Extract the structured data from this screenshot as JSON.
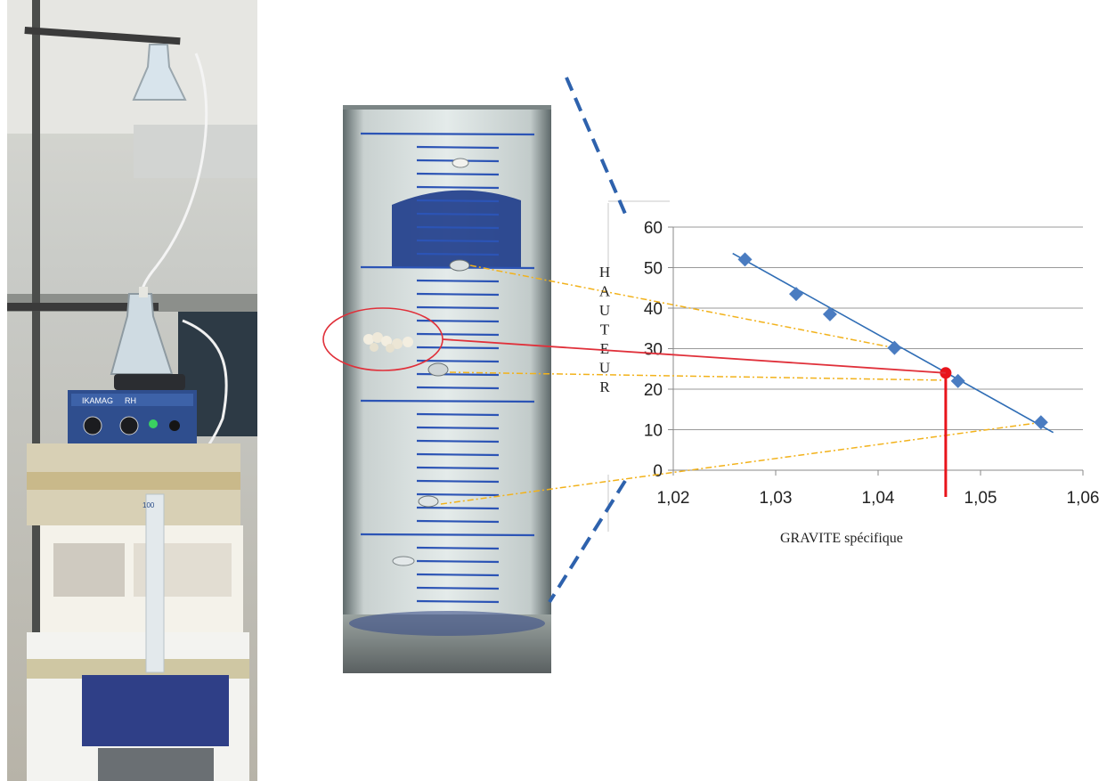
{
  "photo_apparatus": {
    "device_brand": "IKAMAG",
    "device_model": "RH",
    "cylinder_label": "100"
  },
  "chart_data": {
    "type": "scatter",
    "xlabel": "GRAVITE  spécifique",
    "ylabel": "HAUTEUR",
    "xlim": [
      1.02,
      1.06
    ],
    "ylim": [
      0,
      60
    ],
    "x_ticks": [
      "1,02",
      "1,03",
      "1,04",
      "1,05",
      "1,06"
    ],
    "y_ticks": [
      "0",
      "10",
      "20",
      "30",
      "40",
      "50",
      "60"
    ],
    "grid": "horizontal",
    "series": [
      {
        "marker": "diamond",
        "color": "#4a7cc1",
        "points": [
          {
            "x": 1.027,
            "y": 52
          },
          {
            "x": 1.032,
            "y": 43.5
          },
          {
            "x": 1.0353,
            "y": 38.5
          },
          {
            "x": 1.0416,
            "y": 30.2
          },
          {
            "x": 1.0478,
            "y": 22
          },
          {
            "x": 1.0559,
            "y": 11.8
          }
        ]
      }
    ],
    "trendline": {
      "color": "#2f6db5",
      "x_start": 1.0258,
      "y_start": 53.5,
      "x_end": 1.0571,
      "y_end": 9.3
    },
    "marked_point": {
      "x": 1.0466,
      "y": 24,
      "color": "#e8141b"
    },
    "marker_vertical_line": {
      "x": 1.0466,
      "color": "#e8141b"
    },
    "guide_color": "#f2b21b",
    "zoom_line_color": "#2e62ad",
    "highlight_ellipse_color": "#e0303a"
  }
}
